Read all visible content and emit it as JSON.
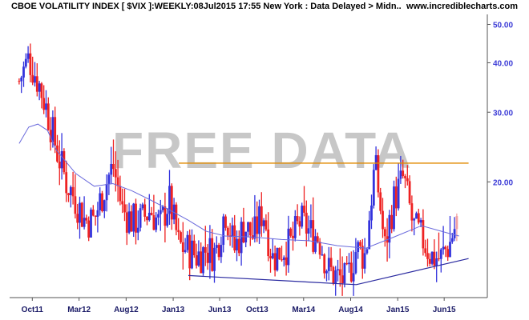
{
  "header": {
    "title": "CBOE VOLATILITY INDEX [ $VIX ]:WEEKLY:08Jul2015 17:55 New York : Data Delayed > Midn..",
    "site": "www.incrediblecharts.com"
  },
  "watermark": "FREE DATA",
  "colors": {
    "up": "#3333dd",
    "down": "#ee2222",
    "moving_average": "#6a6adc",
    "resistance": "#e08a00",
    "support": "#2a2aa0",
    "axis_text": "#3b3bd6",
    "last_bar": "#f2a0a0"
  },
  "chart_data": {
    "type": "line",
    "title": "CBOE VOLATILITY INDEX [ $VIX ]",
    "scale": "log",
    "ylim": [
      10.2,
      53
    ],
    "y_ticks": [
      20,
      30,
      40,
      50
    ],
    "y_tick_labels": [
      "20.00",
      "30.00",
      "40.00",
      "50.00"
    ],
    "x_tick_labels": [
      "Oct11",
      "Mar12",
      "Aug12",
      "Jan13",
      "Jun13",
      "Oct13",
      "Mar14",
      "Aug14",
      "Jan15",
      "Jun15"
    ],
    "grid": false,
    "series": [
      {
        "kind": "weekly-high-low-bars",
        "close_path": [
          [
            "2011-08",
            36
          ],
          [
            "2011-09",
            41
          ],
          [
            "2011-10",
            36
          ],
          [
            "2011-11",
            30
          ],
          [
            "2011-12",
            24
          ],
          [
            "2012-01",
            20
          ],
          [
            "2012-02",
            18
          ],
          [
            "2012-03",
            16
          ],
          [
            "2012-04",
            16
          ],
          [
            "2012-05",
            19
          ],
          [
            "2012-06",
            22
          ],
          [
            "2012-07",
            17
          ],
          [
            "2012-08",
            16
          ],
          [
            "2012-09",
            16
          ],
          [
            "2012-10",
            17
          ],
          [
            "2012-11",
            15.5
          ],
          [
            "2012-12",
            18
          ],
          [
            "2013-01",
            13.8
          ],
          [
            "2013-02",
            13.5
          ],
          [
            "2013-03",
            13
          ],
          [
            "2013-04",
            13.5
          ],
          [
            "2013-05",
            13.2
          ],
          [
            "2013-06",
            17
          ],
          [
            "2013-07",
            13.5
          ],
          [
            "2013-08",
            15.5
          ],
          [
            "2013-09",
            14.5
          ],
          [
            "2013-10",
            17
          ],
          [
            "2013-11",
            12.8
          ],
          [
            "2013-12",
            13.5
          ],
          [
            "2014-01",
            14
          ],
          [
            "2014-02",
            16
          ],
          [
            "2014-03",
            15
          ],
          [
            "2014-04",
            14.5
          ],
          [
            "2014-05",
            12
          ],
          [
            "2014-06",
            11.5
          ],
          [
            "2014-07",
            11.2
          ],
          [
            "2014-08",
            13.5
          ],
          [
            "2014-09",
            13
          ],
          [
            "2014-10",
            22
          ],
          [
            "2014-11",
            13.5
          ],
          [
            "2014-12",
            18
          ],
          [
            "2015-01",
            20.5
          ],
          [
            "2015-02",
            15.5
          ],
          [
            "2015-03",
            14.5
          ],
          [
            "2015-04",
            13
          ],
          [
            "2015-05",
            12.8
          ],
          [
            "2015-06",
            14
          ],
          [
            "2015-07",
            16.5
          ]
        ]
      },
      {
        "kind": "moving-average",
        "values": [
          [
            "2011-08",
            25
          ],
          [
            "2011-09",
            27.5
          ],
          [
            "2011-10",
            28
          ],
          [
            "2011-11",
            27
          ],
          [
            "2011-12",
            24
          ],
          [
            "2012-02",
            21
          ],
          [
            "2012-04",
            19.5
          ],
          [
            "2012-06",
            19.8
          ],
          [
            "2012-08",
            19
          ],
          [
            "2012-10",
            18
          ],
          [
            "2012-12",
            17
          ],
          [
            "2013-02",
            16
          ],
          [
            "2013-04",
            15
          ],
          [
            "2013-06",
            14.6
          ],
          [
            "2013-09",
            14.5
          ],
          [
            "2013-12",
            14.3
          ],
          [
            "2014-03",
            14.2
          ],
          [
            "2014-06",
            13.8
          ],
          [
            "2014-09",
            13.6
          ],
          [
            "2014-12",
            14.5
          ],
          [
            "2015-03",
            15.5
          ],
          [
            "2015-06",
            14.8
          ],
          [
            "2015-07",
            14.6
          ]
        ]
      },
      {
        "kind": "horizontal-line",
        "from": "2013-01",
        "to": "2015-08",
        "value": 22.3
      },
      {
        "kind": "trendline",
        "points": [
          [
            "2013-02",
            11.6
          ],
          [
            "2014-08",
            11.0
          ],
          [
            "2015-08",
            12.8
          ]
        ]
      }
    ]
  }
}
